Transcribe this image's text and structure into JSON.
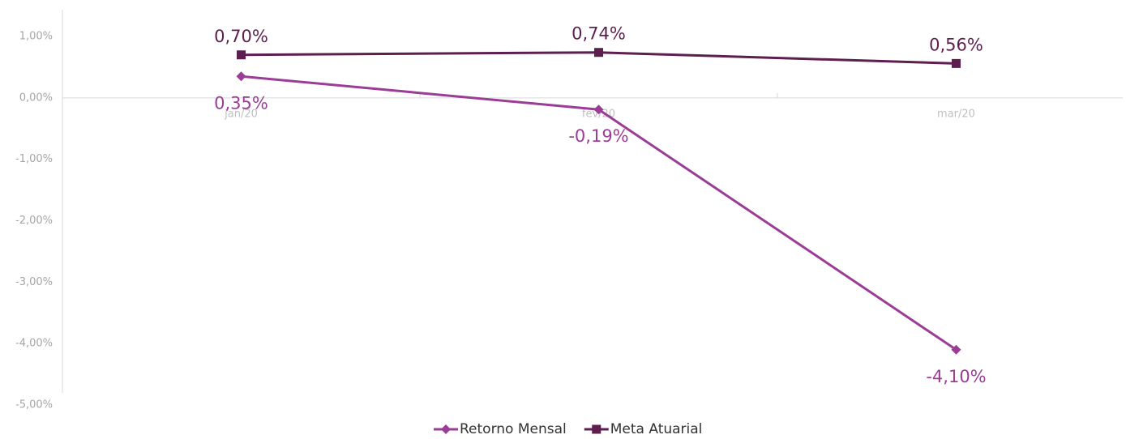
{
  "chart_data": {
    "type": "line",
    "categories": [
      "jan/20",
      "fev/20",
      "mar/20"
    ],
    "series": [
      {
        "name": "Retorno Mensal",
        "color": "#9b3d96",
        "marker": "diamond",
        "label_position": "below",
        "values": [
          0.35,
          -0.19,
          -4.1
        ],
        "value_labels": [
          "0,35%",
          "-0,19%",
          "-4,10%"
        ]
      },
      {
        "name": "Meta Atuarial",
        "color": "#5c1f4f",
        "marker": "square",
        "label_position": "above",
        "values": [
          0.7,
          0.74,
          0.56
        ],
        "value_labels": [
          "0,70%",
          "0,74%",
          "0,56%"
        ]
      }
    ],
    "ylim": [
      -5,
      1
    ],
    "yticks": [
      {
        "value": 1,
        "label": "1,00%"
      },
      {
        "value": 0,
        "label": "0,00%"
      },
      {
        "value": -1,
        "label": "-1,00%"
      },
      {
        "value": -2,
        "label": "-2,00%"
      },
      {
        "value": -3,
        "label": "-3,00%"
      },
      {
        "value": -4,
        "label": "-4,00%"
      },
      {
        "value": -5,
        "label": "-5,00%"
      }
    ],
    "grid": false,
    "legend": "bottom"
  }
}
